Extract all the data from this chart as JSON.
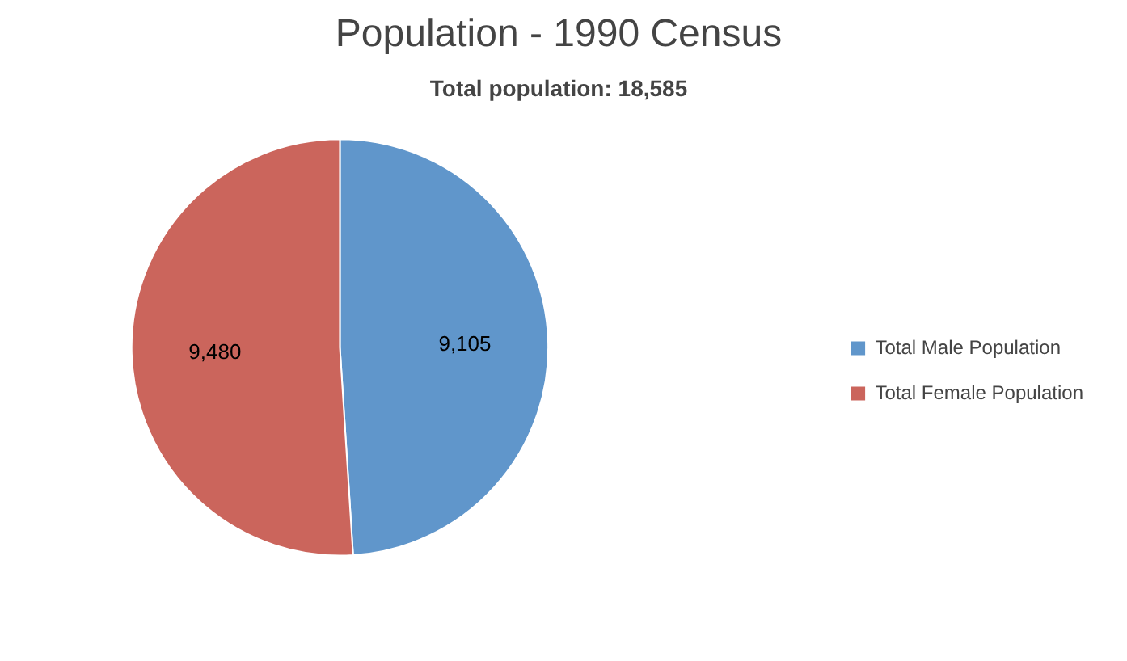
{
  "chart_data": {
    "type": "pie",
    "title": "Population - 1990 Census",
    "subtitle": "Total population: 18,585",
    "categories": [
      "Total Male Population",
      "Total Female Population"
    ],
    "values": [
      9105,
      9480
    ],
    "colors": [
      "#6096cb",
      "#cb655c"
    ],
    "value_labels": [
      "9,105",
      "9,480"
    ],
    "legend": "right"
  }
}
